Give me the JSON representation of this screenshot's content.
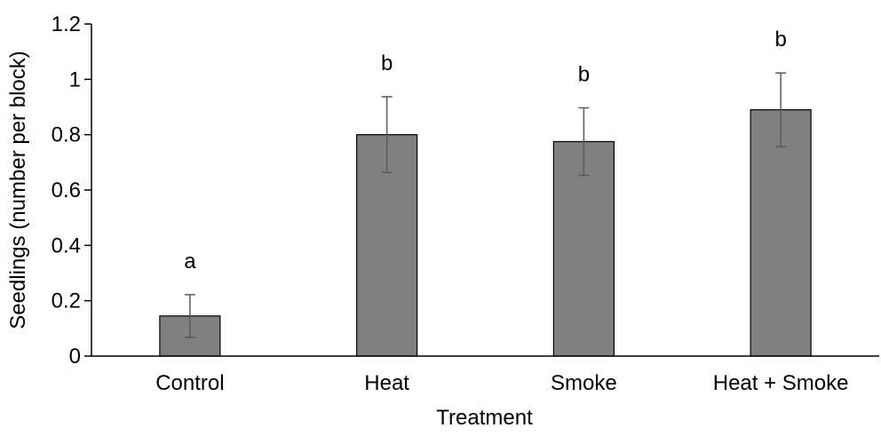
{
  "chart_data": {
    "type": "bar",
    "xlabel": "Treatment",
    "ylabel": "Seedlings (number per block)",
    "ylim": [
      0,
      1.2
    ],
    "yticks": [
      "0",
      "0.2",
      "0.4",
      "0.6",
      "0.8",
      "1",
      "1.2"
    ],
    "grid": false,
    "legend": "none",
    "categories": [
      "Control",
      "Heat",
      "Smoke",
      "Heat + Smoke"
    ],
    "values": [
      0.145,
      0.8,
      0.775,
      0.89
    ],
    "error": [
      0.077,
      0.137,
      0.122,
      0.133
    ],
    "significance_letters": [
      "a",
      "b",
      "b",
      "b"
    ],
    "bar_color": "#808080",
    "bar_edge_color": "#000000",
    "error_bar_color": "#595959"
  }
}
